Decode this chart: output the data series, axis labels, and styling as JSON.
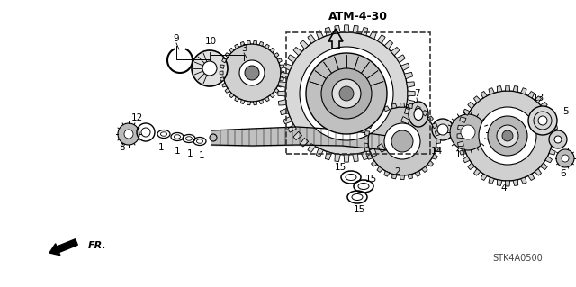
{
  "bg_color": "#ffffff",
  "line_color": "#000000",
  "atm_label": "ATM-4-30",
  "fr_label": "FR.",
  "stk_label": "STK4A0500",
  "figsize": [
    6.4,
    3.19
  ],
  "dpi": 100
}
